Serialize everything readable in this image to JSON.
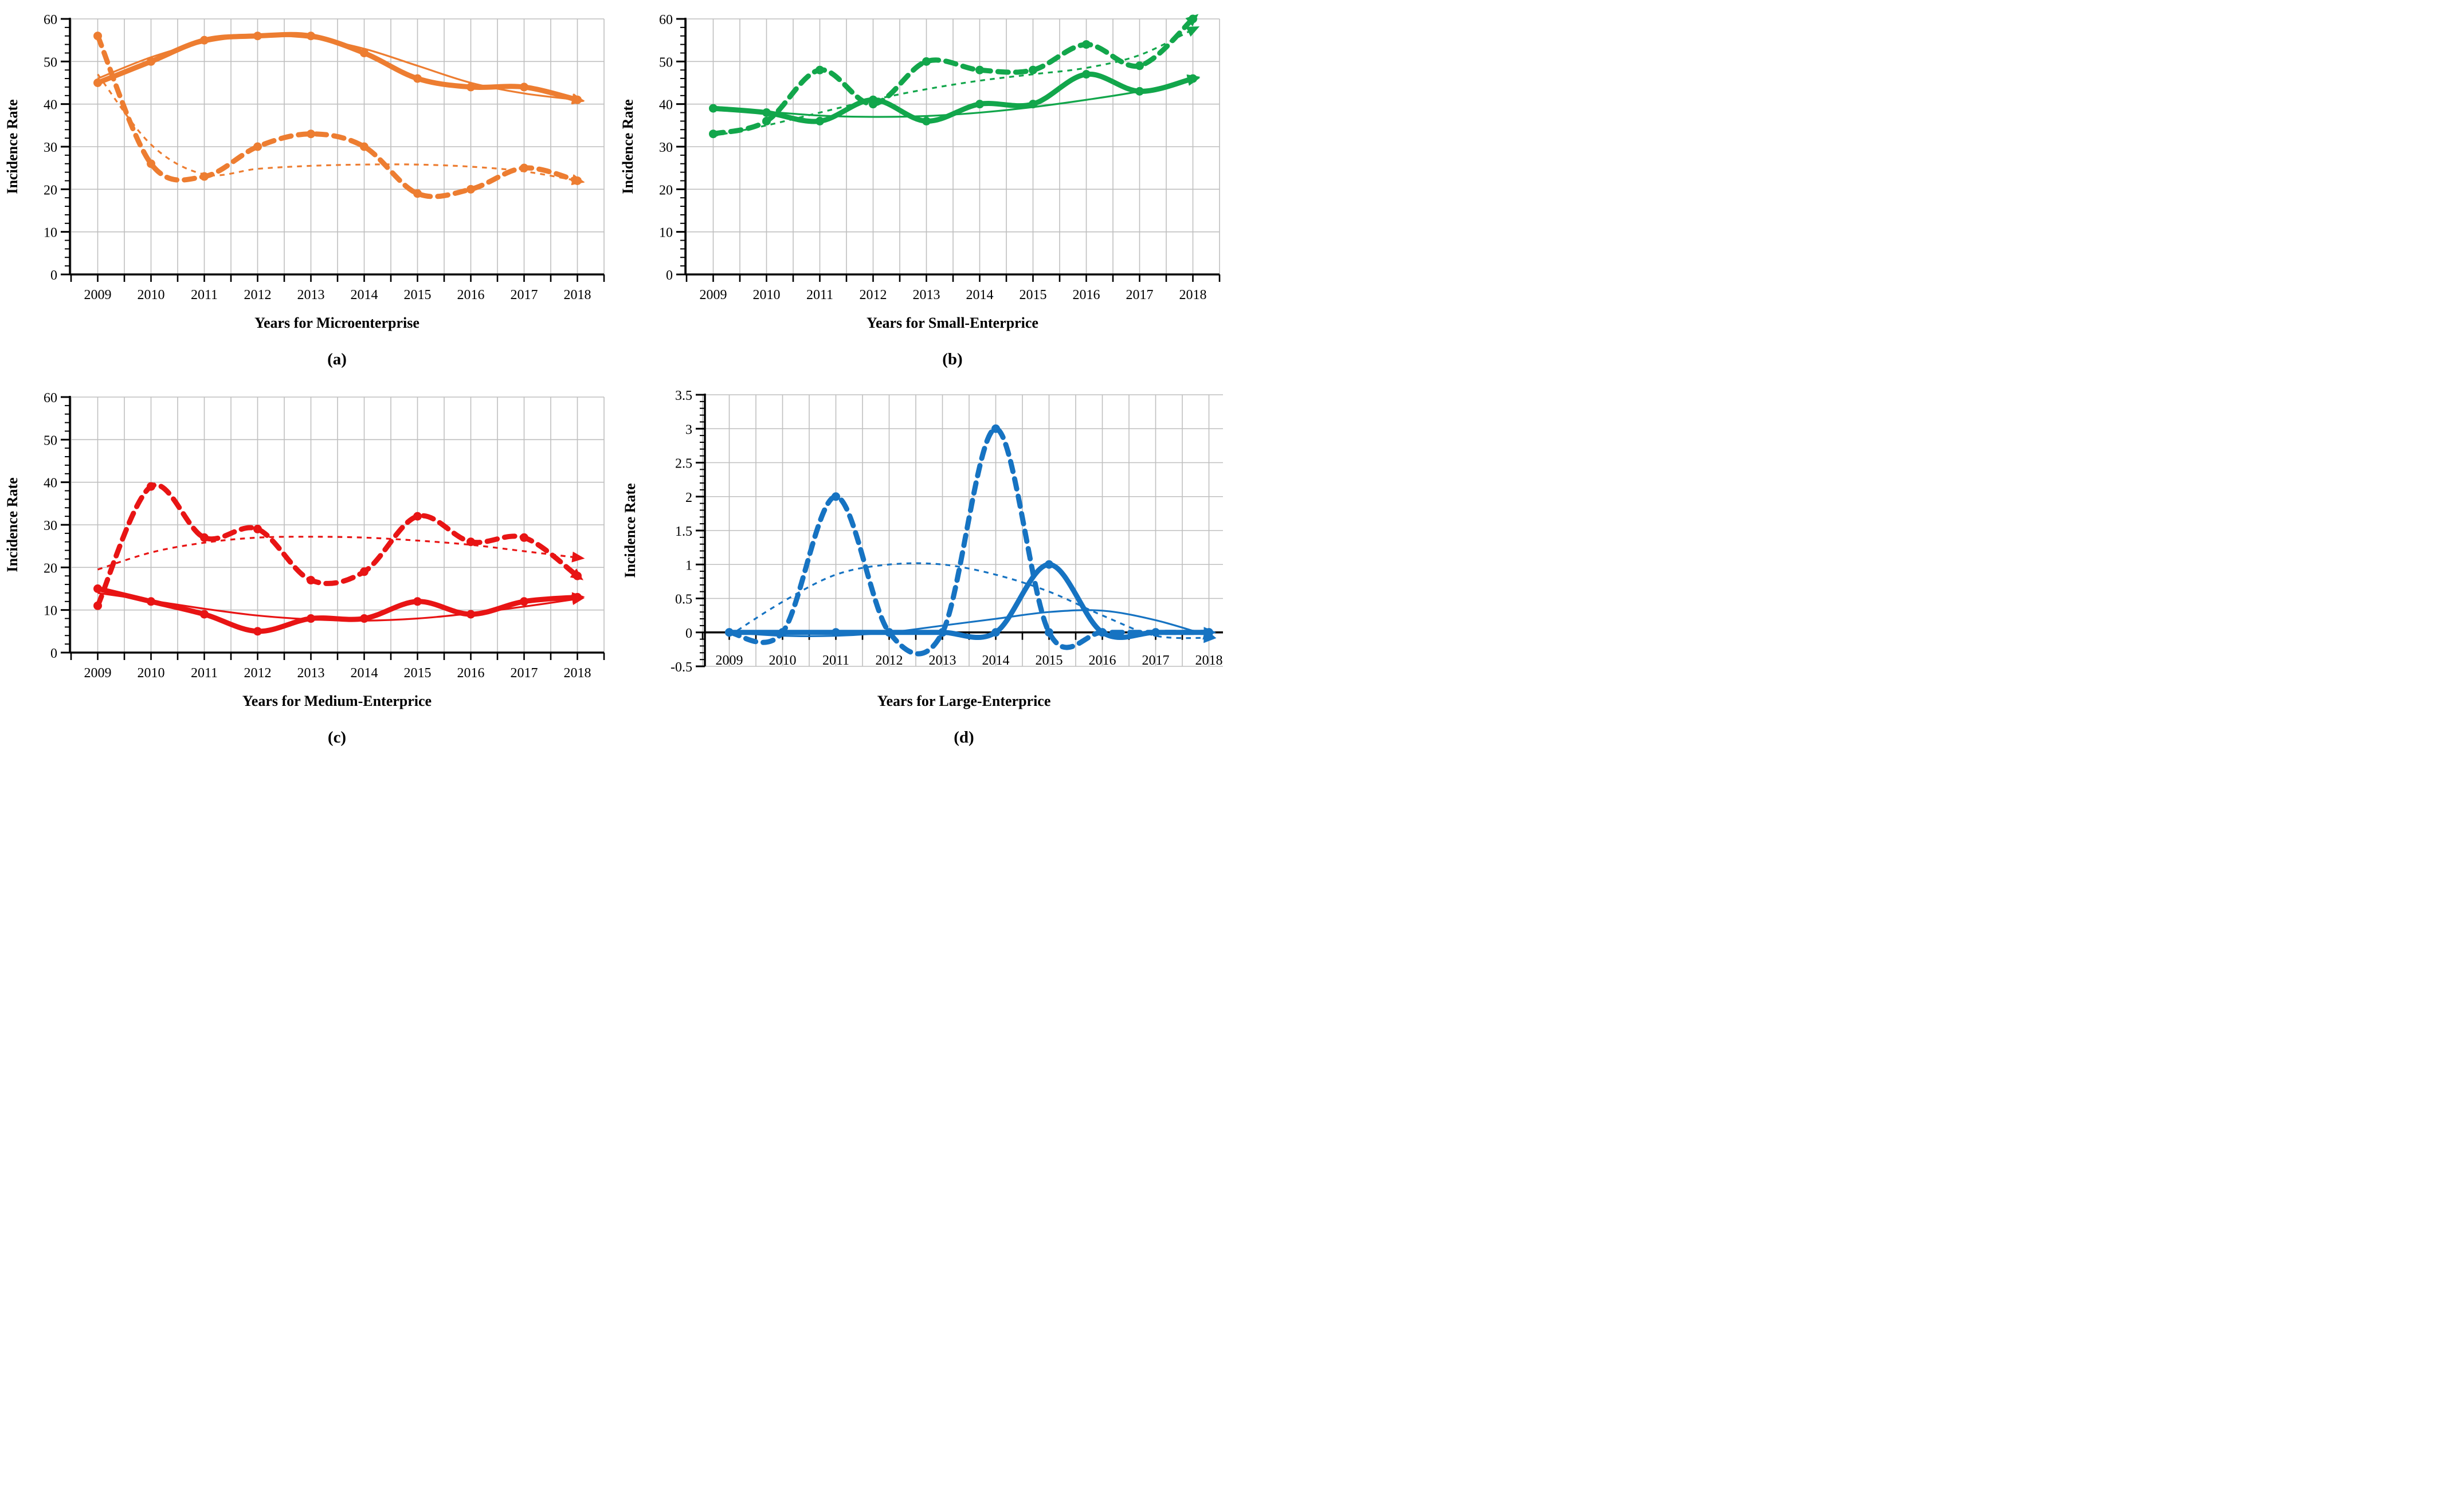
{
  "figure": {
    "description": "Four line charts of incidence rate by enterprise size, 2009-2018",
    "background": "#FFFFFF",
    "gridline_color": "#BFBFBF",
    "axis_color": "#000000"
  },
  "chart_data": [
    {
      "id": "a",
      "type": "line",
      "caption": "(a)",
      "xlabel": "Years for Microenterprise",
      "ylabel": "Incidence Rate",
      "color": "#ED7D31",
      "x": [
        2009,
        2010,
        2011,
        2012,
        2013,
        2014,
        2015,
        2016,
        2017,
        2018
      ],
      "xticklabels": [
        "2009",
        "2010",
        "2011",
        "2012",
        "2013",
        "2014",
        "2015",
        "2016",
        "2017",
        "2018"
      ],
      "ylim": [
        0,
        60
      ],
      "ytick_step": 10,
      "yminor_step": 2,
      "yticklabels": [
        "0",
        "10",
        "20",
        "30",
        "40",
        "50",
        "60"
      ],
      "grid": "on",
      "legend": "none",
      "series": [
        {
          "name": "solid-with-markers",
          "style": "thick-solid",
          "marker": true,
          "arrow": true,
          "values": [
            45,
            50,
            55,
            56,
            56,
            52,
            46,
            44,
            44,
            41
          ]
        },
        {
          "name": "dashed-with-markers",
          "style": "thick-dashed",
          "marker": true,
          "arrow": true,
          "values": [
            56,
            26,
            23,
            30,
            33,
            30,
            19,
            20,
            25,
            22
          ]
        },
        {
          "name": "trend-solid",
          "style": "thin-solid",
          "marker": false,
          "arrow": true,
          "values": [
            46,
            51,
            54.5,
            56,
            55.5,
            53,
            49,
            45,
            42.5,
            41
          ]
        },
        {
          "name": "trend-dashed",
          "style": "thin-dashed",
          "marker": false,
          "arrow": true,
          "values": [
            47,
            30.5,
            23.5,
            24.8,
            25.5,
            25.8,
            25.8,
            25.3,
            24.2,
            22
          ]
        }
      ]
    },
    {
      "id": "b",
      "type": "line",
      "caption": "(b)",
      "xlabel": "Years for Small-Enterprice",
      "ylabel": "Incidence Rate",
      "color": "#12A64B",
      "x": [
        2009,
        2010,
        2011,
        2012,
        2013,
        2014,
        2015,
        2016,
        2017,
        2018
      ],
      "xticklabels": [
        "2009",
        "2010",
        "2011",
        "2012",
        "2013",
        "2014",
        "2015",
        "2016",
        "2017",
        "2018"
      ],
      "ylim": [
        0,
        60
      ],
      "ytick_step": 10,
      "yminor_step": 2,
      "yticklabels": [
        "0",
        "10",
        "20",
        "30",
        "40",
        "50",
        "60"
      ],
      "grid": "on",
      "legend": "none",
      "series": [
        {
          "name": "solid-with-markers",
          "style": "thick-solid",
          "marker": true,
          "arrow": true,
          "values": [
            39,
            38,
            36,
            41,
            36,
            40,
            40,
            47,
            43,
            46
          ]
        },
        {
          "name": "dashed-with-markers",
          "style": "thick-dashed",
          "marker": true,
          "arrow": true,
          "values": [
            33,
            36,
            48,
            40,
            50,
            48,
            48,
            54,
            49,
            60
          ]
        },
        {
          "name": "trend-solid",
          "style": "thin-solid",
          "marker": false,
          "arrow": true,
          "values": [
            38.8,
            38.2,
            37.3,
            37,
            37.2,
            38,
            39.3,
            41,
            43,
            45.8
          ]
        },
        {
          "name": "trend-dashed",
          "style": "thin-dashed",
          "marker": false,
          "arrow": true,
          "values": [
            32.5,
            35,
            38,
            41,
            43.5,
            45.5,
            47,
            48.5,
            51.5,
            57.5
          ]
        }
      ]
    },
    {
      "id": "c",
      "type": "line",
      "caption": "(c)",
      "xlabel": "Years for Medium-Enterprice",
      "ylabel": "Incidence Rate",
      "color": "#E81414",
      "x": [
        2009,
        2010,
        2011,
        2012,
        2013,
        2014,
        2015,
        2016,
        2017,
        2018
      ],
      "xticklabels": [
        "2009",
        "2010",
        "2011",
        "2012",
        "2013",
        "2014",
        "2015",
        "2016",
        "2017",
        "2018"
      ],
      "ylim": [
        0,
        60
      ],
      "ytick_step": 10,
      "yminor_step": 2,
      "yticklabels": [
        "0",
        "10",
        "20",
        "30",
        "40",
        "50",
        "60"
      ],
      "grid": "on",
      "legend": "none",
      "series": [
        {
          "name": "solid-with-markers",
          "style": "thick-solid",
          "marker": true,
          "arrow": true,
          "values": [
            15,
            12,
            9,
            5,
            8,
            8,
            12,
            9,
            12,
            13
          ]
        },
        {
          "name": "dashed-with-markers",
          "style": "thick-dashed",
          "marker": true,
          "arrow": true,
          "values": [
            11,
            39,
            27,
            29,
            17,
            19,
            32,
            26,
            27,
            18
          ]
        },
        {
          "name": "trend-solid",
          "style": "thin-solid",
          "marker": false,
          "arrow": true,
          "values": [
            14,
            12.2,
            10.3,
            8.7,
            7.8,
            7.5,
            8,
            9.2,
            10.8,
            12.6
          ]
        },
        {
          "name": "trend-dashed",
          "style": "thin-dashed",
          "marker": false,
          "arrow": true,
          "values": [
            19.5,
            23.5,
            25.8,
            27,
            27.2,
            27,
            26.3,
            25.3,
            23.8,
            22.3
          ]
        }
      ]
    },
    {
      "id": "d",
      "type": "line",
      "caption": "(d)",
      "xlabel": "Years for Large-Enterprice",
      "ylabel": "Incidence Rate",
      "color": "#1673C2",
      "x": [
        2009,
        2010,
        2011,
        2012,
        2013,
        2014,
        2015,
        2016,
        2017,
        2018
      ],
      "xticklabels": [
        "2009",
        "2010",
        "2011",
        "2012",
        "2013",
        "2014",
        "2015",
        "2016",
        "2017",
        "2018"
      ],
      "ylim": [
        -0.5,
        3.5
      ],
      "ytick_step": 0.5,
      "yminor_step": 0.1,
      "yticklabels": [
        "-0.5",
        "0",
        "0.5",
        "1",
        "1.5",
        "2",
        "2.5",
        "3",
        "3.5"
      ],
      "grid": "on",
      "legend": "none",
      "x_axis_cross_at": 0,
      "series": [
        {
          "name": "solid-with-markers",
          "style": "thick-solid",
          "marker": true,
          "arrow": true,
          "values": [
            0,
            0,
            0,
            0,
            0,
            0,
            1,
            0,
            0,
            0
          ]
        },
        {
          "name": "dashed-with-markers",
          "style": "thick-dashed",
          "marker": true,
          "arrow": true,
          "values": [
            0,
            0,
            2,
            0,
            0,
            3,
            0,
            0,
            0,
            0
          ]
        },
        {
          "name": "trend-solid",
          "style": "thin-solid",
          "marker": false,
          "arrow": true,
          "values": [
            0,
            -0.05,
            -0.05,
            0,
            0.1,
            0.2,
            0.3,
            0.32,
            0.18,
            -0.05
          ]
        },
        {
          "name": "trend-dashed",
          "style": "thin-dashed",
          "marker": false,
          "arrow": true,
          "values": [
            -0.05,
            0.45,
            0.85,
            1,
            1,
            0.85,
            0.6,
            0.25,
            -0.05,
            -0.08
          ]
        }
      ]
    }
  ]
}
